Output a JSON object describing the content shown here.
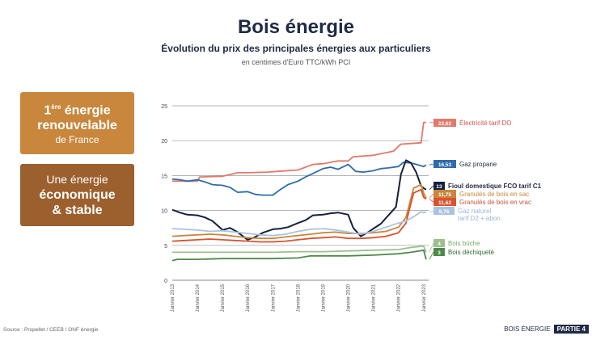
{
  "header": {
    "title": "Bois énergie",
    "subtitle": "Évolution du prix des principales énergies aux particuliers",
    "unit": "en centimes d'Euro TTC/kWh PCI"
  },
  "boxes": [
    {
      "sup": "ère",
      "line1": "énergie",
      "num": "1",
      "line2": "renouvelable",
      "line3": "de France"
    },
    {
      "line1": "Une énergie",
      "line2": "économique",
      "line3": "& stable"
    }
  ],
  "source": "Source : Propellet / CEEB / ONF énergie",
  "footer": {
    "section": "BOIS ÉNERGIE",
    "part": "PARTIE 4"
  },
  "chart_data": {
    "type": "line",
    "ylim": [
      0,
      25
    ],
    "yticks": [
      0,
      5,
      10,
      15,
      20,
      25
    ],
    "xlim": [
      2013,
      2023.2
    ],
    "xticks": [
      "Janvier 2013",
      "Janvier 2014",
      "Janvier 2015",
      "Janvier 2016",
      "Janvier 2017",
      "Janvier 2018",
      "Janvier 2019",
      "Janvier 2020",
      "Janvier 2021",
      "Janvier 2022",
      "Janvier 2023"
    ],
    "grid": "horizontal",
    "series": [
      {
        "name": "Électricité tarif DO",
        "label_value": "22,62",
        "color": "#e07a6a",
        "x": [
          2013,
          2014,
          2014.1,
          2015,
          2015.6,
          2016,
          2016.8,
          2017.2,
          2018,
          2018.6,
          2019,
          2019.6,
          2020,
          2020.2,
          2021,
          2021.8,
          2022,
          2022.1,
          2022.9,
          2023,
          2023.1
        ],
        "y": [
          14.2,
          14.2,
          14.8,
          14.9,
          15.4,
          15.4,
          15.5,
          15.6,
          15.8,
          16.6,
          16.7,
          17.1,
          17.1,
          17.7,
          17.9,
          18.5,
          19.2,
          19.5,
          19.7,
          22.6,
          22.62
        ]
      },
      {
        "name": "Gaz propane",
        "label_value": "16,53",
        "color": "#2f6ca8",
        "x": [
          2013,
          2013.3,
          2013.6,
          2014,
          2014.3,
          2014.6,
          2015,
          2015.3,
          2015.6,
          2016,
          2016.3,
          2016.6,
          2017,
          2017.3,
          2017.6,
          2018,
          2018.3,
          2018.6,
          2019,
          2019.3,
          2019.6,
          2020,
          2020.3,
          2020.6,
          2021,
          2021.3,
          2021.6,
          2022,
          2022.2,
          2022.5,
          2022.8,
          2023,
          2023.1
        ],
        "y": [
          14.5,
          14.4,
          14.2,
          14.4,
          14.1,
          13.7,
          13.6,
          13.3,
          12.6,
          12.7,
          12.3,
          12.2,
          12.2,
          13.0,
          13.7,
          14.2,
          14.8,
          15.3,
          16.0,
          16.2,
          15.9,
          16.6,
          15.6,
          15.5,
          15.7,
          16.0,
          16.1,
          16.3,
          16.9,
          16.8,
          16.5,
          16.3,
          16.53
        ]
      },
      {
        "name": "Fioul domestique FCO tarif C1",
        "label_value": "13",
        "color": "#15213d",
        "x": [
          2013,
          2013.3,
          2013.6,
          2014,
          2014.3,
          2014.6,
          2015,
          2015.3,
          2015.6,
          2016,
          2016.3,
          2016.6,
          2017,
          2017.3,
          2017.6,
          2018,
          2018.3,
          2018.6,
          2019,
          2019.3,
          2019.6,
          2020,
          2020.2,
          2020.5,
          2020.8,
          2021,
          2021.3,
          2021.6,
          2021.9,
          2022.1,
          2022.3,
          2022.5,
          2022.7,
          2022.9,
          2023,
          2023.1
        ],
        "y": [
          10.1,
          9.7,
          9.4,
          9.3,
          9.0,
          8.5,
          7.2,
          7.5,
          6.9,
          5.8,
          6.2,
          6.8,
          7.3,
          7.4,
          7.6,
          8.2,
          8.6,
          9.3,
          9.4,
          9.6,
          9.7,
          9.4,
          7.5,
          6.3,
          6.9,
          7.4,
          8.1,
          9.3,
          10.5,
          15.2,
          17.2,
          16.8,
          15.5,
          13.5,
          13.2,
          13.0
        ]
      },
      {
        "name": "Granulés de bois en sac",
        "label_value": "11,75",
        "color": "#c8873d",
        "x": [
          2013,
          2013.5,
          2014,
          2014.5,
          2015,
          2015.5,
          2016,
          2016.5,
          2017,
          2017.5,
          2018,
          2018.5,
          2019,
          2019.5,
          2020,
          2020.5,
          2021,
          2021.5,
          2022,
          2022.3,
          2022.6,
          2022.9,
          2023,
          2023.1
        ],
        "y": [
          6.3,
          6.4,
          6.5,
          6.6,
          6.5,
          6.3,
          6.1,
          6.0,
          6.0,
          6.2,
          6.4,
          6.6,
          6.8,
          6.9,
          6.7,
          6.7,
          6.8,
          7.0,
          7.6,
          9.0,
          13.2,
          13.7,
          12.5,
          11.75
        ]
      },
      {
        "name": "Granulés de bois en vrac",
        "label_value": "11,62",
        "color": "#d9532f",
        "x": [
          2013,
          2013.5,
          2014,
          2014.5,
          2015,
          2015.5,
          2016,
          2016.5,
          2017,
          2017.5,
          2018,
          2018.5,
          2019,
          2019.5,
          2020,
          2020.5,
          2021,
          2021.5,
          2022,
          2022.3,
          2022.6,
          2022.9,
          2023,
          2023.1
        ],
        "y": [
          5.6,
          5.7,
          5.8,
          5.9,
          5.8,
          5.7,
          5.6,
          5.5,
          5.5,
          5.6,
          5.8,
          6.0,
          6.1,
          6.2,
          6.0,
          6.0,
          6.1,
          6.3,
          6.8,
          8.2,
          12.5,
          13.0,
          11.9,
          11.62
        ]
      },
      {
        "name": "Gaz naturel tarif D2 + abon.",
        "label_value": "9,76",
        "color": "#a9c3e0",
        "x": [
          2013,
          2013.5,
          2014,
          2014.5,
          2015,
          2015.5,
          2016,
          2016.5,
          2017,
          2017.5,
          2018,
          2018.5,
          2019,
          2019.5,
          2020,
          2020.5,
          2021,
          2021.5,
          2022,
          2022.3,
          2022.6,
          2022.9,
          2023,
          2023.1
        ],
        "y": [
          7.4,
          7.3,
          7.2,
          7.0,
          7.1,
          6.9,
          6.7,
          6.5,
          6.4,
          6.6,
          7.0,
          7.3,
          7.4,
          7.2,
          6.9,
          6.6,
          7.0,
          7.6,
          8.2,
          8.5,
          9.1,
          9.8,
          9.7,
          9.76
        ]
      },
      {
        "name": "Bois bûche",
        "label_value": "4",
        "color": "#9cbf8e",
        "x": [
          2013,
          2014,
          2015,
          2016,
          2017,
          2018,
          2019,
          2020,
          2021,
          2022,
          2022.5,
          2023,
          2023.1
        ],
        "y": [
          4.0,
          4.0,
          4.0,
          4.0,
          4.0,
          4.1,
          4.1,
          4.2,
          4.3,
          4.4,
          4.7,
          4.9,
          4.0
        ]
      },
      {
        "name": "Bois déchiqueté",
        "label_value": "3",
        "color": "#4d8a4a",
        "x": [
          2013,
          2013.2,
          2014,
          2015,
          2016,
          2017,
          2018,
          2018.5,
          2019,
          2020,
          2021,
          2022,
          2022.5,
          2023,
          2023.1
        ],
        "y": [
          2.8,
          3.0,
          3.0,
          3.1,
          3.1,
          3.1,
          3.2,
          3.5,
          3.5,
          3.5,
          3.6,
          3.8,
          4.0,
          4.3,
          3.0
        ]
      }
    ]
  }
}
